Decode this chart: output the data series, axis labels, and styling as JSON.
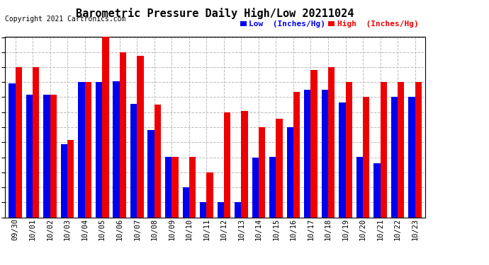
{
  "title": "Barometric Pressure Daily High/Low 20211024",
  "copyright": "Copyright 2021 Cartronics.com",
  "legend_low": "Low  (Inches/Hg)",
  "legend_high": "High  (Inches/Hg)",
  "categories": [
    "09/30",
    "10/01",
    "10/02",
    "10/03",
    "10/04",
    "10/05",
    "10/06",
    "10/07",
    "10/08",
    "10/09",
    "10/10",
    "10/11",
    "10/12",
    "10/13",
    "10/14",
    "10/15",
    "10/16",
    "10/17",
    "10/18",
    "10/19",
    "10/20",
    "10/21",
    "10/22",
    "10/23"
  ],
  "low": [
    29.956,
    29.908,
    29.908,
    29.7,
    29.961,
    29.961,
    29.965,
    29.87,
    29.758,
    29.645,
    29.516,
    29.452,
    29.452,
    29.452,
    29.643,
    29.644,
    29.77,
    29.93,
    29.93,
    29.875,
    29.644,
    29.617,
    29.898,
    29.898
  ],
  "high": [
    30.025,
    30.025,
    29.908,
    29.718,
    29.961,
    30.152,
    30.088,
    30.072,
    29.866,
    29.644,
    29.645,
    29.579,
    29.834,
    29.838,
    29.77,
    29.806,
    29.921,
    30.012,
    30.025,
    29.961,
    29.898,
    29.961,
    29.961,
    29.961
  ],
  "ylim_min": 29.389,
  "ylim_max": 30.152,
  "yticks": [
    29.389,
    29.452,
    29.516,
    29.579,
    29.643,
    29.707,
    29.77,
    29.834,
    29.898,
    29.961,
    30.025,
    30.088,
    30.152
  ],
  "bar_width": 0.38,
  "low_color": "#0000ee",
  "high_color": "#ee0000",
  "bg_color": "#ffffff",
  "grid_color": "#bbbbbb",
  "title_fontsize": 11,
  "tick_fontsize": 7.5,
  "legend_fontsize": 8
}
